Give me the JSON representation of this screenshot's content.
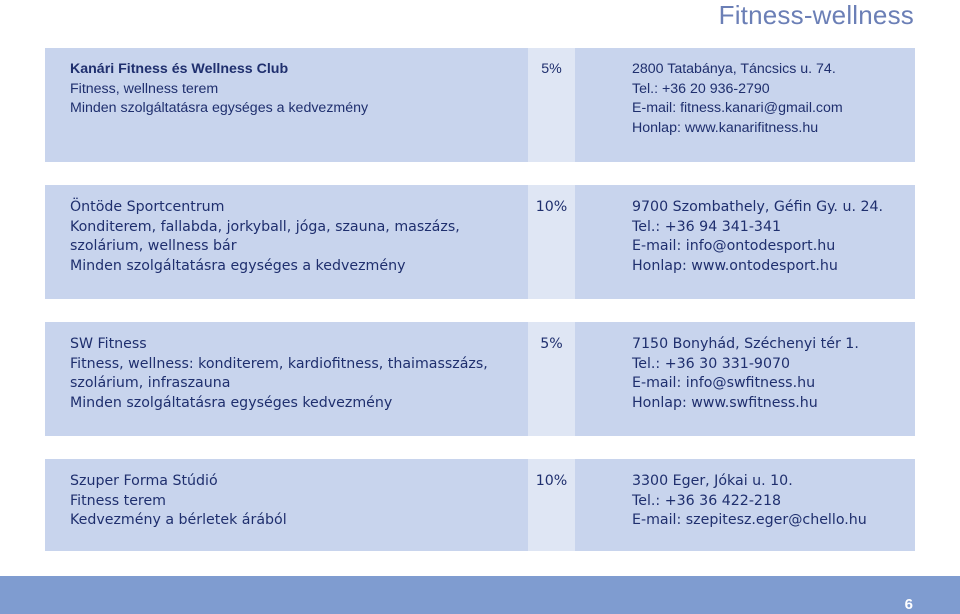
{
  "page_title": "Fitness-wellness",
  "page_number": "6",
  "entries": [
    {
      "name": "Kanári Fitness és Wellness Club",
      "description": [
        "Fitness, wellness terem"
      ],
      "terms": "Minden szolgáltatásra egységes a kedvezmény",
      "discount": "5%",
      "address": "2800 Tatabánya, Táncsics u. 74.",
      "phone": "Tel.: +36 20 936-2790",
      "email": "E-mail: fitness.kanari@gmail.com",
      "web": "Honlap: www.kanarifitness.hu"
    },
    {
      "name": "Öntöde Sportcentrum",
      "description": [
        "Konditerem, fallabda, jorkyball, jóga, szauna, maszázs,",
        "szolárium, wellness bár"
      ],
      "terms": "Minden szolgáltatásra egységes a kedvezmény",
      "discount": "10%",
      "address": "9700 Szombathely, Géfin Gy. u. 24.",
      "phone": "Tel.: +36 94 341-341",
      "email": "E-mail: info@ontodesport.hu",
      "web": "Honlap: www.ontodesport.hu"
    },
    {
      "name": "SW Fitness",
      "description": [
        "Fitness, wellness: konditerem, kardiofitness, thaimasszázs,",
        "szolárium, infraszauna"
      ],
      "terms": "Minden szolgáltatásra egységes kedvezmény",
      "discount": "5%",
      "address": "7150 Bonyhád, Széchenyi tér 1.",
      "phone": "Tel.: +36 30 331-9070",
      "email": "E-mail: info@swfitness.hu",
      "web": "Honlap: www.swfitness.hu"
    },
    {
      "name": "Szuper Forma Stúdió",
      "description": [
        "Fitness terem"
      ],
      "terms": "Kedvezmény a bérletek árából",
      "discount": "10%",
      "address": "3300 Eger, Jókai u. 10.",
      "phone": "Tel.: +36 36 422-218",
      "email": "E-mail: szepitesz.eger@chello.hu"
    }
  ],
  "colors": {
    "card_background": "#c8d4ed",
    "discount_column": "#dfe6f4",
    "text": "#1f2f6e",
    "title": "#6b7fb6",
    "footer": "#7f9cd0"
  }
}
